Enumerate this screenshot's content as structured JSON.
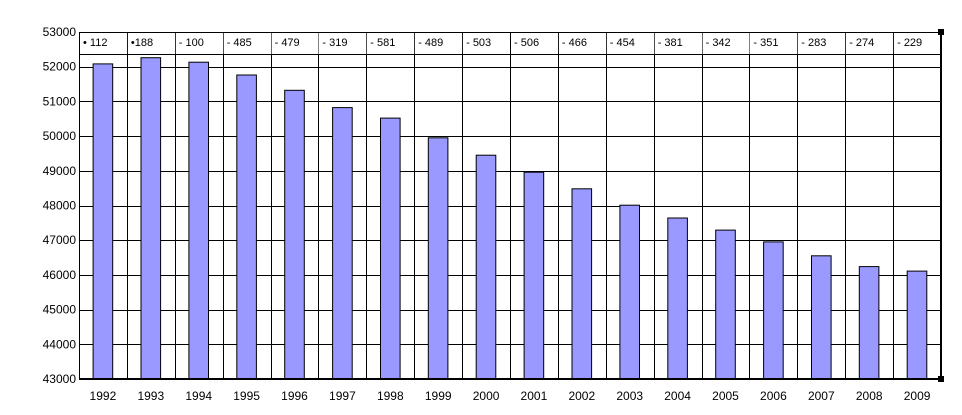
{
  "chart_data": {
    "type": "bar",
    "title": "",
    "xlabel": "",
    "ylabel": "",
    "ylim": [
      43000,
      53000
    ],
    "yticks": [
      43000,
      44000,
      45000,
      46000,
      47000,
      48000,
      49000,
      50000,
      51000,
      52000,
      53000
    ],
    "grid": true,
    "categories": [
      "1992",
      "1993",
      "1994",
      "1995",
      "1996",
      "1997",
      "1998",
      "1999",
      "2000",
      "2001",
      "2002",
      "2003",
      "2004",
      "2005",
      "2006",
      "2007",
      "2008",
      "2009"
    ],
    "values": [
      52080,
      52260,
      52130,
      51760,
      51320,
      50820,
      50520,
      49950,
      49450,
      48960,
      48480,
      48010,
      47640,
      47290,
      46950,
      46550,
      46240,
      46110
    ],
    "annotations": [
      "• 112",
      "•188",
      "- 100",
      "- 485",
      "- 479",
      "- 319",
      "- 581",
      "- 489",
      "- 503",
      "- 506",
      "- 466",
      "- 454",
      "- 381",
      "- 342",
      "- 351",
      "- 283",
      "- 274",
      "- 229"
    ],
    "colors": {
      "bar_fill": "#9999ff",
      "bar_stroke": "#000000",
      "grid": "#000000",
      "background": "#ffffff"
    }
  }
}
